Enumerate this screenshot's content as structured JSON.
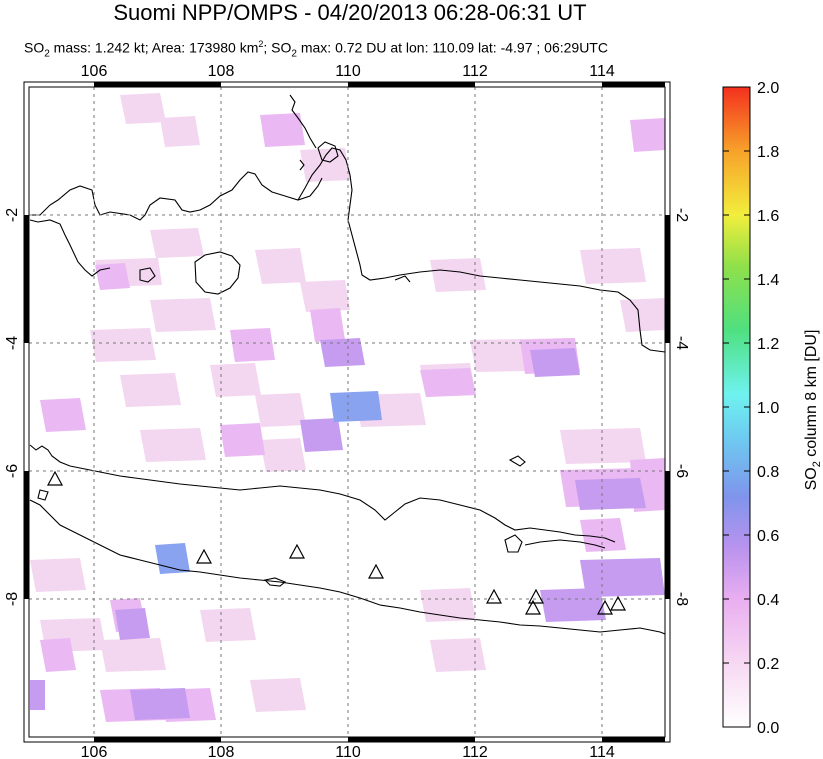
{
  "title": "Suomi NPP/OMPS - 04/20/2013 06:28-06:31 UT",
  "subtitle": {
    "so2_mass_label": "SO",
    "so2_mass_rest": " mass: 1.242 kt; Area: 173980 km",
    "area_sup": "2",
    "so2_max_label": "; SO",
    "so2_max_rest": " max: 0.72 DU at lon: 110.09 lat: -4.97 ; 06:29UTC"
  },
  "map": {
    "lon_ticks": [
      "106",
      "108",
      "110",
      "112",
      "114"
    ],
    "lat_ticks_left": [
      "-2",
      "-4",
      "-6",
      "-8"
    ],
    "lat_ticks_right": [
      "-2",
      "-4",
      "-6",
      "-8"
    ],
    "lon_range": [
      105,
      115
    ],
    "lat_range": [
      -10,
      -1
    ]
  },
  "colorbar": {
    "ticks": [
      "2.0",
      "1.8",
      "1.6",
      "1.4",
      "1.2",
      "1.0",
      "0.8",
      "0.6",
      "0.4",
      "0.2",
      "0.0"
    ],
    "title_prefix": "SO",
    "title_sub": "2",
    "title_rest": " column 8 km [DU]",
    "range": [
      0,
      2.0
    ]
  },
  "volcano_count_visible": 10
}
